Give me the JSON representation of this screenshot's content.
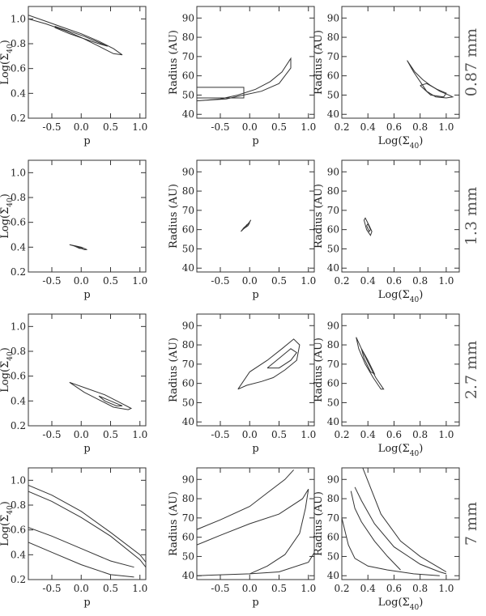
{
  "figure": {
    "rows": [
      {
        "label": "0.87 mm"
      },
      {
        "label": "1.3 mm"
      },
      {
        "label": "2.7 mm"
      },
      {
        "label": "7 mm"
      }
    ],
    "columns": [
      {
        "xlabel": "p",
        "ylabel": "Log(Σ40)",
        "xlim": [
          -0.9,
          1.1
        ],
        "ylim": [
          0.2,
          1.1
        ],
        "xticks": [
          "-0.5",
          "0.0",
          "0.5",
          "1.0"
        ],
        "xtick_values": [
          -0.5,
          0,
          0.5,
          1
        ],
        "yticks": [
          "0.2",
          "0.4",
          "0.6",
          "0.8",
          "1.0"
        ],
        "ytick_values": [
          0.2,
          0.4,
          0.6,
          0.8,
          1.0
        ]
      },
      {
        "xlabel": "p",
        "ylabel": "Radius (AU)",
        "xlim": [
          -0.9,
          1.1
        ],
        "ylim": [
          38,
          96
        ],
        "xticks": [
          "-0.5",
          "0.0",
          "0.5",
          "1.0"
        ],
        "xtick_values": [
          -0.5,
          0,
          0.5,
          1
        ],
        "yticks": [
          "40",
          "50",
          "60",
          "70",
          "80",
          "90"
        ],
        "ytick_values": [
          40,
          50,
          60,
          70,
          80,
          90
        ]
      },
      {
        "xlabel": "Log(Σ40)",
        "ylabel": "Radius (AU)",
        "xlim": [
          0.2,
          1.1
        ],
        "ylim": [
          38,
          96
        ],
        "xticks": [
          "0.2",
          "0.4",
          "0.6",
          "0.8",
          "1.0"
        ],
        "xtick_values": [
          0.2,
          0.4,
          0.6,
          0.8,
          1.0
        ],
        "yticks": [
          "40",
          "50",
          "60",
          "70",
          "80",
          "90"
        ],
        "ytick_values": [
          40,
          50,
          60,
          70,
          80,
          90
        ]
      }
    ]
  },
  "chart_data": [
    {
      "type": "contour",
      "panel": "0.87 mm · Log(Σ40) vs p",
      "contours": [
        {
          "x": [
            -0.9,
            -0.6,
            -0.3,
            0.0,
            0.3,
            0.55,
            0.7,
            0.55,
            0.3,
            0.0,
            -0.3,
            -0.6,
            -0.9
          ],
          "y": [
            1.03,
            0.98,
            0.93,
            0.88,
            0.82,
            0.76,
            0.71,
            0.72,
            0.78,
            0.85,
            0.91,
            0.96,
            1.0
          ]
        },
        {
          "x": [
            -0.45,
            -0.2,
            0.05,
            0.3,
            0.45,
            0.3,
            0.05,
            -0.2,
            -0.45
          ],
          "y": [
            0.94,
            0.9,
            0.86,
            0.81,
            0.78,
            0.8,
            0.84,
            0.88,
            0.93
          ]
        }
      ]
    },
    {
      "type": "contour",
      "panel": "0.87 mm · Radius vs p",
      "contours": [
        {
          "x": [
            -0.9,
            -0.5,
            -0.2,
            0.1,
            0.35,
            0.55,
            0.7,
            0.7,
            0.5,
            0.2,
            -0.1,
            -0.4,
            -0.9
          ],
          "y": [
            47,
            48,
            50,
            53,
            57,
            62,
            69,
            64,
            56,
            52,
            50,
            48,
            47
          ]
        },
        {
          "x": [
            -0.9,
            -0.1,
            -0.1,
            -0.9,
            -0.9
          ],
          "y": [
            48.5,
            48.5,
            54,
            54,
            48.5
          ]
        }
      ]
    },
    {
      "type": "contour",
      "panel": "0.87 mm · Radius vs Log(Σ40)",
      "contours": [
        {
          "x": [
            0.7,
            0.75,
            0.8,
            0.85,
            0.92,
            1.0,
            1.05,
            1.02,
            0.95,
            0.88,
            0.82,
            0.76,
            0.72,
            0.7
          ],
          "y": [
            68,
            62,
            57,
            52,
            49,
            48.5,
            49,
            50,
            52,
            55,
            58,
            62,
            66,
            68
          ]
        },
        {
          "x": [
            0.8,
            0.88,
            0.98,
            1.0,
            0.93,
            0.85,
            0.8
          ],
          "y": [
            55,
            50,
            49,
            51,
            53,
            56,
            55
          ]
        }
      ]
    },
    {
      "type": "contour",
      "panel": "1.3 mm · Log(Σ40) vs p",
      "contours": [
        {
          "x": [
            -0.2,
            -0.1,
            0.0,
            0.1,
            0.05,
            -0.05,
            -0.2
          ],
          "y": [
            0.42,
            0.41,
            0.4,
            0.38,
            0.38,
            0.4,
            0.42
          ]
        },
        {
          "x": [
            -0.12,
            -0.05,
            0.03,
            -0.03,
            -0.12
          ],
          "y": [
            0.41,
            0.4,
            0.39,
            0.39,
            0.41
          ]
        }
      ]
    },
    {
      "type": "contour",
      "panel": "1.3 mm · Radius vs p",
      "contours": [
        {
          "x": [
            -0.15,
            -0.05,
            0.02,
            -0.02,
            -0.1,
            -0.15
          ],
          "y": [
            59,
            62,
            65,
            63,
            61,
            59
          ]
        },
        {
          "x": [
            -0.1,
            -0.03,
            0.0,
            -0.05,
            -0.1
          ],
          "y": [
            60.5,
            62,
            63.5,
            62.5,
            60.5
          ]
        }
      ]
    },
    {
      "type": "contour",
      "panel": "1.3 mm · Radius vs Log(Σ40)",
      "contours": [
        {
          "x": [
            0.37,
            0.39,
            0.42,
            0.43,
            0.41,
            0.38,
            0.37
          ],
          "y": [
            65,
            60,
            57,
            59,
            62,
            66,
            65
          ]
        },
        {
          "x": [
            0.39,
            0.41,
            0.42,
            0.4,
            0.39
          ],
          "y": [
            62,
            59,
            60,
            63,
            62
          ]
        }
      ]
    },
    {
      "type": "contour",
      "panel": "2.7 mm · Log(Σ40) vs p",
      "contours": [
        {
          "x": [
            -0.2,
            0.1,
            0.4,
            0.65,
            0.85,
            0.8,
            0.55,
            0.3,
            0.05,
            -0.2
          ],
          "y": [
            0.55,
            0.5,
            0.45,
            0.39,
            0.34,
            0.33,
            0.35,
            0.41,
            0.47,
            0.55
          ]
        },
        {
          "x": [
            0.3,
            0.5,
            0.7,
            0.6,
            0.4,
            0.3
          ],
          "y": [
            0.44,
            0.4,
            0.36,
            0.36,
            0.4,
            0.44
          ]
        }
      ]
    },
    {
      "type": "contour",
      "panel": "2.7 mm · Radius vs p",
      "contours": [
        {
          "x": [
            -0.2,
            0.0,
            0.3,
            0.55,
            0.75,
            0.85,
            0.8,
            0.6,
            0.4,
            0.2,
            -0.05,
            -0.2
          ],
          "y": [
            57,
            66,
            72,
            78,
            83,
            80,
            72,
            67,
            63,
            61,
            59,
            57
          ]
        },
        {
          "x": [
            0.3,
            0.5,
            0.7,
            0.8,
            0.7,
            0.5,
            0.3
          ],
          "y": [
            68,
            73,
            78,
            76,
            72,
            68,
            68
          ]
        }
      ]
    },
    {
      "type": "contour",
      "panel": "2.7 mm · Radius vs Log(Σ40)",
      "contours": [
        {
          "x": [
            0.31,
            0.35,
            0.4,
            0.46,
            0.52,
            0.5,
            0.44,
            0.38,
            0.33,
            0.31
          ],
          "y": [
            84,
            78,
            71,
            63,
            57,
            57,
            63,
            70,
            78,
            84
          ]
        },
        {
          "x": [
            0.35,
            0.4,
            0.45,
            0.42,
            0.37,
            0.35
          ],
          "y": [
            78,
            72,
            65,
            66,
            73,
            78
          ]
        }
      ]
    },
    {
      "type": "contour",
      "panel": "7 mm · Log(Σ40) vs p",
      "contours": [
        {
          "x": [
            -0.9,
            -0.5,
            0.0,
            0.5,
            1.0,
            1.1
          ],
          "y": [
            0.96,
            0.88,
            0.75,
            0.58,
            0.4,
            0.34
          ]
        },
        {
          "x": [
            -0.9,
            -0.5,
            0.0,
            0.5,
            1.0,
            1.1
          ],
          "y": [
            0.91,
            0.83,
            0.7,
            0.55,
            0.36,
            0.3
          ]
        },
        {
          "x": [
            -0.9,
            -0.5,
            0.0,
            0.5,
            0.9
          ],
          "y": [
            0.62,
            0.55,
            0.45,
            0.35,
            0.3
          ]
        },
        {
          "x": [
            -0.9,
            -0.5,
            0.0,
            0.5,
            0.9
          ],
          "y": [
            0.5,
            0.42,
            0.32,
            0.24,
            0.22
          ]
        }
      ]
    },
    {
      "type": "contour",
      "panel": "7 mm · Radius vs p",
      "contours": [
        {
          "x": [
            -0.9,
            -0.5,
            0.0,
            0.3,
            0.6,
            0.75
          ],
          "y": [
            64,
            69,
            76,
            83,
            90,
            95
          ]
        },
        {
          "x": [
            -0.9,
            -0.5,
            0.0,
            0.5,
            0.9,
            1.0,
            0.95
          ],
          "y": [
            56,
            61,
            67,
            72,
            80,
            85,
            75
          ]
        },
        {
          "x": [
            0.95,
            0.85,
            0.6,
            0.3,
            0.0
          ],
          "y": [
            75,
            62,
            51,
            45,
            41
          ]
        },
        {
          "x": [
            -0.9,
            -0.5,
            0.0,
            0.5,
            1.0,
            1.1
          ],
          "y": [
            40,
            40.5,
            41,
            42,
            47,
            52
          ]
        }
      ]
    },
    {
      "type": "contour",
      "panel": "7 mm · Radius vs Log(Σ40)",
      "contours": [
        {
          "x": [
            0.36,
            0.5,
            0.65,
            0.8,
            0.95,
            1.0
          ],
          "y": [
            96,
            72,
            58,
            50,
            44,
            42
          ]
        },
        {
          "x": [
            0.3,
            0.35,
            0.45,
            0.6,
            0.8,
            0.95,
            1.0
          ],
          "y": [
            86,
            79,
            67,
            55,
            46,
            42,
            41
          ]
        },
        {
          "x": [
            0.27,
            0.3,
            0.35,
            0.45,
            0.55,
            0.65
          ],
          "y": [
            84,
            75,
            68,
            58,
            50,
            43
          ]
        },
        {
          "x": [
            0.2,
            0.25,
            0.3,
            0.4,
            0.55,
            0.75,
            0.95
          ],
          "y": [
            70,
            56,
            49,
            45,
            43,
            41,
            40
          ]
        }
      ]
    }
  ]
}
